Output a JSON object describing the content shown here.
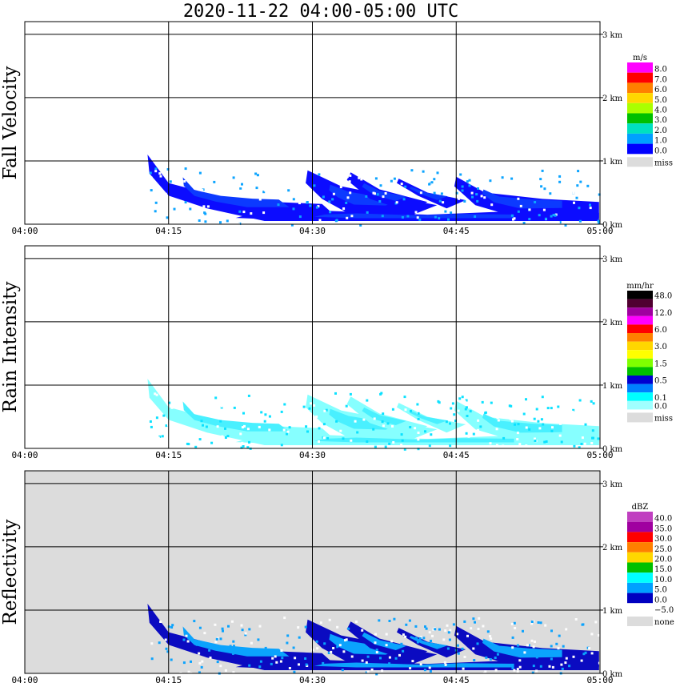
{
  "title": "2020-11-22   04:00-05:00 UTC",
  "time_ticks": [
    "04:00",
    "04:15",
    "04:30",
    "04:45",
    "05:00"
  ],
  "height_ticks": [
    "0 km",
    "1 km",
    "2 km",
    "3 km"
  ],
  "chart_data": [
    {
      "type": "heatmap",
      "ylabel": "Fall Velocity",
      "x_range": [
        "04:00",
        "05:00"
      ],
      "y_range_km": [
        0,
        3.2
      ],
      "grid": true,
      "background": "#ffffff",
      "legend": {
        "unit": "m/s",
        "placement": "right",
        "bins": [
          {
            "label": "8.0",
            "color": "#ff00ff"
          },
          {
            "label": "7.0",
            "color": "#ff0000"
          },
          {
            "label": "6.0",
            "color": "#ff8000"
          },
          {
            "label": "5.0",
            "color": "#ffd700"
          },
          {
            "label": "4.0",
            "color": "#aaff00"
          },
          {
            "label": "3.0",
            "color": "#00c000"
          },
          {
            "label": "2.0",
            "color": "#00e0c0"
          },
          {
            "label": "1.0",
            "color": "#00a0ff"
          },
          {
            "label": "0.0",
            "color": "#0000ff"
          }
        ],
        "missing": {
          "label": "miss",
          "color": "#dcdcdc"
        }
      }
    },
    {
      "type": "heatmap",
      "ylabel": "Rain Intensity",
      "x_range": [
        "04:00",
        "05:00"
      ],
      "y_range_km": [
        0,
        3.2
      ],
      "grid": true,
      "background": "#ffffff",
      "legend": {
        "unit": "mm/hr",
        "placement": "right",
        "bins": [
          {
            "label": "48.0",
            "color": "#000000"
          },
          {
            "label": "",
            "color": "#500030"
          },
          {
            "label": "12.0",
            "color": "#a000a0"
          },
          {
            "label": "",
            "color": "#ff00ff"
          },
          {
            "label": "6.0",
            "color": "#ff0000"
          },
          {
            "label": "",
            "color": "#ff8000"
          },
          {
            "label": "3.0",
            "color": "#ffd700"
          },
          {
            "label": "",
            "color": "#ffff00"
          },
          {
            "label": "1.5",
            "color": "#80ff00"
          },
          {
            "label": "",
            "color": "#00c000"
          },
          {
            "label": "0.5",
            "color": "#0000d0"
          },
          {
            "label": "",
            "color": "#0080ff"
          },
          {
            "label": "0.1",
            "color": "#00ffff"
          },
          {
            "label": "0.0",
            "color": "#a0ffff"
          }
        ],
        "missing": {
          "label": "miss",
          "color": "#dcdcdc"
        }
      }
    },
    {
      "type": "heatmap",
      "ylabel": "Reflectivity",
      "x_range": [
        "04:00",
        "05:00"
      ],
      "y_range_km": [
        0,
        3.2
      ],
      "grid": true,
      "background": "#dcdcdc",
      "legend": {
        "unit": "dBZ",
        "placement": "right",
        "bins": [
          {
            "label": "40.0",
            "color": "#c040c0"
          },
          {
            "label": "35.0",
            "color": "#a000a0"
          },
          {
            "label": "30.0",
            "color": "#ff0000"
          },
          {
            "label": "25.0",
            "color": "#ff8000"
          },
          {
            "label": "20.0",
            "color": "#ffd700"
          },
          {
            "label": "15.0",
            "color": "#00c000"
          },
          {
            "label": "10.0",
            "color": "#00ffff"
          },
          {
            "label": "5.0",
            "color": "#00a0ff"
          },
          {
            "label": "0.0",
            "color": "#0000c0"
          },
          {
            "label": "−5.0",
            "color": "#ffffff"
          }
        ],
        "missing": {
          "label": "none",
          "color": "#dcdcdc"
        }
      }
    }
  ]
}
